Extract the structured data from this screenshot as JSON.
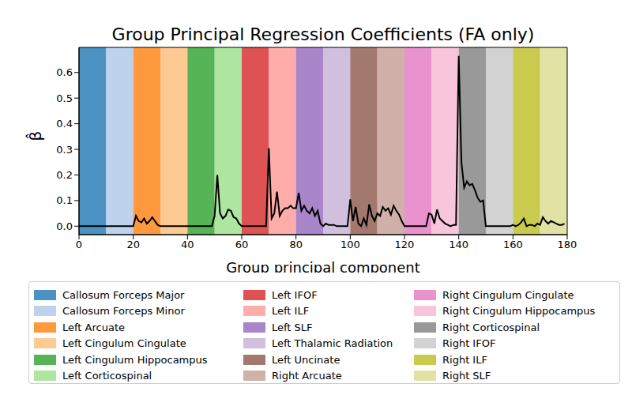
{
  "chart_data": {
    "type": "line",
    "title": "Group Principal Regression Coefficients (FA only)",
    "x_label": "Group principal component",
    "y_label": "β̂",
    "x": [
      0,
      1,
      2,
      3,
      4,
      5,
      6,
      7,
      8,
      9,
      10,
      11,
      12,
      13,
      14,
      15,
      16,
      17,
      18,
      19,
      20,
      21,
      22,
      23,
      24,
      25,
      26,
      27,
      28,
      29,
      30,
      31,
      32,
      33,
      34,
      35,
      36,
      37,
      38,
      39,
      40,
      41,
      42,
      43,
      44,
      45,
      46,
      47,
      48,
      49,
      50,
      51,
      52,
      53,
      54,
      55,
      56,
      57,
      58,
      59,
      60,
      61,
      62,
      63,
      64,
      65,
      66,
      67,
      68,
      69,
      70,
      71,
      72,
      73,
      74,
      75,
      76,
      77,
      78,
      79,
      80,
      81,
      82,
      83,
      84,
      85,
      86,
      87,
      88,
      89,
      90,
      91,
      92,
      93,
      94,
      95,
      96,
      97,
      98,
      99,
      100,
      101,
      102,
      103,
      104,
      105,
      106,
      107,
      108,
      109,
      110,
      111,
      112,
      113,
      114,
      115,
      116,
      117,
      118,
      119,
      120,
      121,
      122,
      123,
      124,
      125,
      126,
      127,
      128,
      129,
      130,
      131,
      132,
      133,
      134,
      135,
      136,
      137,
      138,
      139,
      140,
      141,
      142,
      143,
      144,
      145,
      146,
      147,
      148,
      149,
      150,
      151,
      152,
      153,
      154,
      155,
      156,
      157,
      158,
      159,
      160,
      161,
      162,
      163,
      164,
      165,
      166,
      167,
      168,
      169,
      170,
      171,
      172,
      173,
      174,
      175,
      176,
      177,
      178,
      179
    ],
    "series": [
      {
        "color": "#000000",
        "values": [
          0,
          0,
          0,
          0,
          0,
          0,
          0,
          0,
          0,
          0,
          0,
          0,
          0,
          0,
          0,
          0,
          0,
          0,
          0,
          0,
          0,
          0.04,
          0.02,
          0.015,
          0.03,
          0.01,
          0.02,
          0.035,
          0.02,
          0.005,
          0,
          0,
          0,
          0,
          0,
          0,
          0,
          0,
          0,
          0,
          0,
          0,
          0,
          0,
          0,
          0,
          0,
          0,
          0,
          0,
          0.04,
          0.2,
          0.05,
          0.03,
          0.04,
          0.065,
          0.06,
          0.035,
          0.03,
          0.01,
          0,
          0,
          0,
          0,
          0,
          0,
          0,
          0,
          0,
          0,
          0.305,
          0.03,
          0.05,
          0.135,
          0.04,
          0.06,
          0.07,
          0.07,
          0.08,
          0.07,
          0.07,
          0.13,
          0.06,
          0.08,
          0.06,
          0.05,
          0.07,
          0.04,
          0.06,
          0.01,
          0,
          0.01,
          0.005,
          0.005,
          0.005,
          0,
          0,
          0,
          0,
          0,
          0.105,
          0.02,
          0.075,
          0.01,
          0,
          0.03,
          0.005,
          0.085,
          0.04,
          0.02,
          0.05,
          0.04,
          0.075,
          0.06,
          0.07,
          0.045,
          0.08,
          0.06,
          0.045,
          0.02,
          0,
          0,
          0,
          0,
          0,
          0,
          0,
          0,
          0,
          0.05,
          0.045,
          0.01,
          0.065,
          0.03,
          0.02,
          0.01,
          0.005,
          0,
          0.005,
          0.005,
          0.665,
          0.25,
          0.15,
          0.175,
          0.16,
          0.165,
          0.14,
          0.11,
          0.095,
          0.1,
          0,
          0,
          0,
          0,
          0,
          0,
          0,
          0,
          0,
          0,
          0.005,
          0,
          0.005,
          0.015,
          0.03,
          0,
          0.005,
          0.005,
          0,
          0.01,
          0.005,
          0.035,
          0.02,
          0.01,
          0.02,
          0.015,
          0.01,
          0.005,
          0.005,
          0.01
        ]
      }
    ],
    "bands": [
      {
        "name": "Callosum Forceps Major",
        "color": "#1f77b4",
        "range": [
          0,
          10
        ]
      },
      {
        "name": "Callosum Forceps Minor",
        "color": "#aec7e8",
        "range": [
          10,
          20
        ]
      },
      {
        "name": "Left Arcuate",
        "color": "#ff7f0e",
        "range": [
          20,
          30
        ]
      },
      {
        "name": "Left Cingulum Cingulate",
        "color": "#ffbb78",
        "range": [
          30,
          40
        ]
      },
      {
        "name": "Left Cingulum Hippocampus",
        "color": "#2ca02c",
        "range": [
          40,
          50
        ]
      },
      {
        "name": "Left Corticospinal",
        "color": "#98df8a",
        "range": [
          50,
          60
        ]
      },
      {
        "name": "Left IFOF",
        "color": "#d62728",
        "range": [
          60,
          70
        ]
      },
      {
        "name": "Left ILF",
        "color": "#ff9896",
        "range": [
          70,
          80
        ]
      },
      {
        "name": "Left SLF",
        "color": "#9467bd",
        "range": [
          80,
          90
        ]
      },
      {
        "name": "Left Thalamic Radiation",
        "color": "#c5b0d5",
        "range": [
          90,
          100
        ]
      },
      {
        "name": "Left Uncinate",
        "color": "#8c564b",
        "range": [
          100,
          110
        ]
      },
      {
        "name": "Right Arcuate",
        "color": "#c49c94",
        "range": [
          110,
          120
        ]
      },
      {
        "name": "Right Cingulum Cingulate",
        "color": "#e377c2",
        "range": [
          120,
          130
        ]
      },
      {
        "name": "Right Cingulum Hippocampus",
        "color": "#f7b6d2",
        "range": [
          130,
          140
        ]
      },
      {
        "name": "Right Corticospinal",
        "color": "#7f7f7f",
        "range": [
          140,
          150
        ]
      },
      {
        "name": "Right IFOF",
        "color": "#c7c7c7",
        "range": [
          150,
          160
        ]
      },
      {
        "name": "Right ILF",
        "color": "#bcbd22",
        "range": [
          160,
          170
        ]
      },
      {
        "name": "Right SLF",
        "color": "#dbdb8d",
        "range": [
          170,
          180
        ]
      }
    ],
    "xlim": [
      0,
      180
    ],
    "xticks": [
      0,
      20,
      40,
      60,
      80,
      100,
      120,
      140,
      160,
      180
    ],
    "ylim": [
      -0.033,
      0.698
    ],
    "yticks": [
      {
        "value": 0,
        "label": "0.0"
      },
      {
        "value": 0.1,
        "label": "0.1"
      },
      {
        "value": 0.2,
        "label": "0.2"
      },
      {
        "value": 0.3,
        "label": "0.3"
      },
      {
        "value": 0.4,
        "label": "0.4"
      },
      {
        "value": 0.5,
        "label": "0.5"
      },
      {
        "value": 0.6,
        "label": "0.6"
      }
    ],
    "legend": "bottom",
    "grid": false
  }
}
